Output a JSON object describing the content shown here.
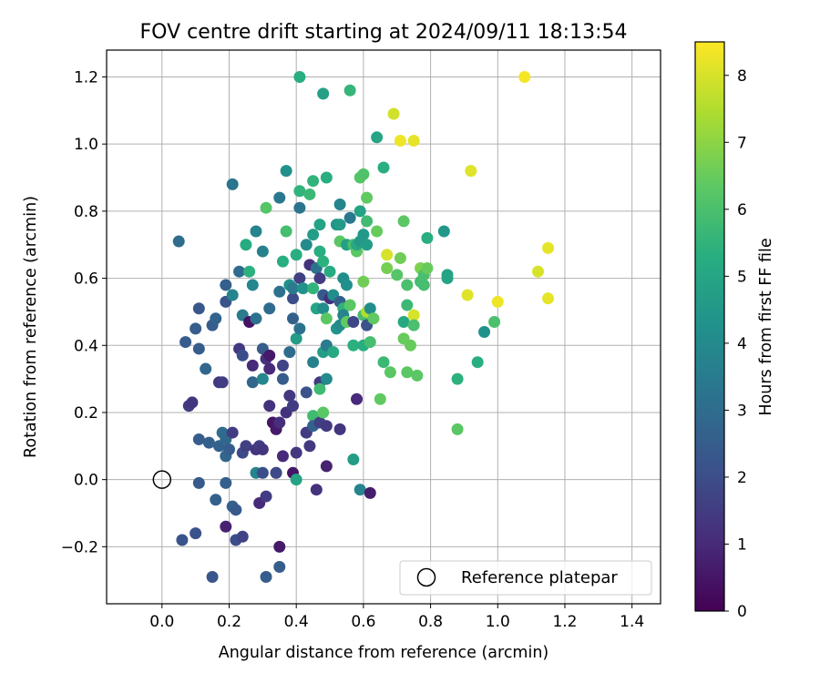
{
  "chart_data": {
    "type": "scatter",
    "title": "FOV centre drift starting at 2024/09/11 18:13:54",
    "xlabel": "Angular distance from reference (arcmin)",
    "ylabel": "Rotation from reference (arcmin)",
    "xlim": [
      -0.165,
      1.485
    ],
    "ylim": [
      -0.37,
      1.28
    ],
    "xticks": [
      0.0,
      0.2,
      0.4,
      0.6,
      0.8,
      1.0,
      1.2,
      1.4
    ],
    "xtick_labels": [
      "0.0",
      "0.2",
      "0.4",
      "0.6",
      "0.8",
      "1.0",
      "1.2",
      "1.4"
    ],
    "yticks": [
      -0.2,
      0.0,
      0.2,
      0.4,
      0.6,
      0.8,
      1.0,
      1.2
    ],
    "ytick_labels": [
      "−0.2",
      "0.0",
      "0.2",
      "0.4",
      "0.6",
      "0.8",
      "1.0",
      "1.2"
    ],
    "grid": true,
    "colormap": "viridis",
    "colorbar": {
      "label": "Hours from first FF file",
      "min": 0,
      "max": 8.5,
      "ticks": [
        0,
        1,
        2,
        3,
        4,
        5,
        6,
        7,
        8
      ],
      "tick_labels": [
        "0",
        "1",
        "2",
        "3",
        "4",
        "5",
        "6",
        "7",
        "8"
      ]
    },
    "reference_point": {
      "x": 0.0,
      "y": 0.0,
      "label": "Reference platepar"
    },
    "legend_position": "lower-right",
    "points": [
      {
        "x": 0.05,
        "y": 0.71,
        "h": 3.0
      },
      {
        "x": 0.06,
        "y": -0.18,
        "h": 2.2
      },
      {
        "x": 0.07,
        "y": 0.41,
        "h": 2.5
      },
      {
        "x": 0.08,
        "y": 0.22,
        "h": 1.5
      },
      {
        "x": 0.09,
        "y": 0.23,
        "h": 1.3
      },
      {
        "x": 0.1,
        "y": 0.45,
        "h": 2.5
      },
      {
        "x": 0.1,
        "y": -0.16,
        "h": 2.2
      },
      {
        "x": 0.11,
        "y": 0.51,
        "h": 2.3
      },
      {
        "x": 0.11,
        "y": 0.39,
        "h": 2.5
      },
      {
        "x": 0.11,
        "y": -0.01,
        "h": 2.4
      },
      {
        "x": 0.11,
        "y": 0.12,
        "h": 2.5
      },
      {
        "x": 0.13,
        "y": 0.33,
        "h": 2.8
      },
      {
        "x": 0.14,
        "y": 0.11,
        "h": 2.6
      },
      {
        "x": 0.15,
        "y": -0.29,
        "h": 2.3
      },
      {
        "x": 0.15,
        "y": 0.46,
        "h": 2.5
      },
      {
        "x": 0.16,
        "y": 0.48,
        "h": 2.7
      },
      {
        "x": 0.16,
        "y": -0.06,
        "h": 2.6
      },
      {
        "x": 0.17,
        "y": 0.29,
        "h": 1.4
      },
      {
        "x": 0.17,
        "y": 0.1,
        "h": 2.7
      },
      {
        "x": 0.18,
        "y": 0.14,
        "h": 3.0
      },
      {
        "x": 0.18,
        "y": 0.29,
        "h": 1.5
      },
      {
        "x": 0.19,
        "y": 0.07,
        "h": 2.8
      },
      {
        "x": 0.19,
        "y": 0.58,
        "h": 2.6
      },
      {
        "x": 0.19,
        "y": 0.53,
        "h": 2.2
      },
      {
        "x": 0.19,
        "y": 0.12,
        "h": 2.9
      },
      {
        "x": 0.19,
        "y": -0.01,
        "h": 2.6
      },
      {
        "x": 0.19,
        "y": -0.14,
        "h": 0.8
      },
      {
        "x": 0.2,
        "y": 0.09,
        "h": 2.5
      },
      {
        "x": 0.21,
        "y": 0.88,
        "h": 3.3
      },
      {
        "x": 0.21,
        "y": 0.55,
        "h": 3.8
      },
      {
        "x": 0.21,
        "y": 0.14,
        "h": 1.5
      },
      {
        "x": 0.21,
        "y": -0.08,
        "h": 2.6
      },
      {
        "x": 0.22,
        "y": -0.09,
        "h": 2.4
      },
      {
        "x": 0.22,
        "y": -0.18,
        "h": 2.0
      },
      {
        "x": 0.23,
        "y": 0.39,
        "h": 1.4
      },
      {
        "x": 0.23,
        "y": 0.62,
        "h": 3.0
      },
      {
        "x": 0.24,
        "y": 0.49,
        "h": 3.5
      },
      {
        "x": 0.24,
        "y": 0.37,
        "h": 2.0
      },
      {
        "x": 0.24,
        "y": 0.08,
        "h": 1.9
      },
      {
        "x": 0.24,
        "y": -0.17,
        "h": 1.7
      },
      {
        "x": 0.25,
        "y": 0.7,
        "h": 5.2
      },
      {
        "x": 0.25,
        "y": 0.1,
        "h": 1.6
      },
      {
        "x": 0.26,
        "y": 0.47,
        "h": 0.4
      },
      {
        "x": 0.26,
        "y": 0.62,
        "h": 5.4
      },
      {
        "x": 0.27,
        "y": 0.58,
        "h": 3.9
      },
      {
        "x": 0.27,
        "y": 0.34,
        "h": 1.0
      },
      {
        "x": 0.27,
        "y": 0.29,
        "h": 2.8
      },
      {
        "x": 0.28,
        "y": 0.74,
        "h": 3.8
      },
      {
        "x": 0.28,
        "y": 0.48,
        "h": 3.2
      },
      {
        "x": 0.28,
        "y": 0.09,
        "h": 1.3
      },
      {
        "x": 0.28,
        "y": 0.02,
        "h": 3.8
      },
      {
        "x": 0.29,
        "y": -0.07,
        "h": 1.0
      },
      {
        "x": 0.29,
        "y": 0.1,
        "h": 1.5
      },
      {
        "x": 0.3,
        "y": 0.39,
        "h": 2.5
      },
      {
        "x": 0.3,
        "y": 0.68,
        "h": 3.7
      },
      {
        "x": 0.3,
        "y": 0.3,
        "h": 3.9
      },
      {
        "x": 0.3,
        "y": 0.09,
        "h": 1.3
      },
      {
        "x": 0.3,
        "y": 0.02,
        "h": 2.0
      },
      {
        "x": 0.31,
        "y": 0.81,
        "h": 6.2
      },
      {
        "x": 0.31,
        "y": 0.36,
        "h": 1.2
      },
      {
        "x": 0.31,
        "y": -0.05,
        "h": 1.5
      },
      {
        "x": 0.31,
        "y": -0.29,
        "h": 2.5
      },
      {
        "x": 0.32,
        "y": 0.37,
        "h": 0.6
      },
      {
        "x": 0.32,
        "y": 0.33,
        "h": 1.0
      },
      {
        "x": 0.32,
        "y": 0.22,
        "h": 1.2
      },
      {
        "x": 0.32,
        "y": 0.51,
        "h": 3.0
      },
      {
        "x": 0.33,
        "y": 0.17,
        "h": 0.5
      },
      {
        "x": 0.34,
        "y": 0.15,
        "h": 0.6
      },
      {
        "x": 0.34,
        "y": 0.02,
        "h": 1.0
      },
      {
        "x": 0.34,
        "y": 0.02,
        "h": 1.9
      },
      {
        "x": 0.35,
        "y": 0.56,
        "h": 3.2
      },
      {
        "x": 0.35,
        "y": 0.84,
        "h": 3.4
      },
      {
        "x": 0.35,
        "y": 0.17,
        "h": 1.1
      },
      {
        "x": 0.35,
        "y": -0.2,
        "h": 0.6
      },
      {
        "x": 0.35,
        "y": -0.26,
        "h": 2.5
      },
      {
        "x": 0.36,
        "y": 0.65,
        "h": 5.3
      },
      {
        "x": 0.36,
        "y": 0.3,
        "h": 2.5
      },
      {
        "x": 0.36,
        "y": 0.07,
        "h": 1.0
      },
      {
        "x": 0.36,
        "y": 0.34,
        "h": 1.7
      },
      {
        "x": 0.37,
        "y": 0.74,
        "h": 5.9
      },
      {
        "x": 0.37,
        "y": 0.92,
        "h": 4.2
      },
      {
        "x": 0.37,
        "y": 0.2,
        "h": 1.2
      },
      {
        "x": 0.38,
        "y": 0.58,
        "h": 4.2
      },
      {
        "x": 0.38,
        "y": 0.38,
        "h": 3.0
      },
      {
        "x": 0.38,
        "y": 0.25,
        "h": 1.4
      },
      {
        "x": 0.39,
        "y": 0.02,
        "h": 0.5
      },
      {
        "x": 0.39,
        "y": 0.54,
        "h": 2.0
      },
      {
        "x": 0.39,
        "y": 0.57,
        "h": 3.5
      },
      {
        "x": 0.39,
        "y": 0.48,
        "h": 2.6
      },
      {
        "x": 0.39,
        "y": 0.22,
        "h": 1.5
      },
      {
        "x": 0.4,
        "y": 0.67,
        "h": 5.3
      },
      {
        "x": 0.4,
        "y": 0.42,
        "h": 4.7
      },
      {
        "x": 0.4,
        "y": 0.08,
        "h": 1.4
      },
      {
        "x": 0.4,
        "y": 0.0,
        "h": 4.9
      },
      {
        "x": 0.41,
        "y": 1.2,
        "h": 5.3
      },
      {
        "x": 0.41,
        "y": 0.86,
        "h": 5.5
      },
      {
        "x": 0.41,
        "y": 0.81,
        "h": 3.3
      },
      {
        "x": 0.41,
        "y": 0.45,
        "h": 3.2
      },
      {
        "x": 0.41,
        "y": 0.6,
        "h": 1.6
      },
      {
        "x": 0.42,
        "y": 0.57,
        "h": 4.3
      },
      {
        "x": 0.43,
        "y": 0.7,
        "h": 4.0
      },
      {
        "x": 0.43,
        "y": 0.26,
        "h": 2.2
      },
      {
        "x": 0.43,
        "y": 0.14,
        "h": 2.9
      },
      {
        "x": 0.43,
        "y": 0.14,
        "h": 1.5
      },
      {
        "x": 0.44,
        "y": 0.85,
        "h": 5.7
      },
      {
        "x": 0.44,
        "y": 0.64,
        "h": 1.2
      },
      {
        "x": 0.44,
        "y": 0.1,
        "h": 1.4
      },
      {
        "x": 0.45,
        "y": 0.89,
        "h": 5.5
      },
      {
        "x": 0.45,
        "y": 0.73,
        "h": 4.7
      },
      {
        "x": 0.45,
        "y": 0.57,
        "h": 5.5
      },
      {
        "x": 0.45,
        "y": 0.35,
        "h": 3.7
      },
      {
        "x": 0.45,
        "y": 0.19,
        "h": 5.8
      },
      {
        "x": 0.45,
        "y": 0.16,
        "h": 2.6
      },
      {
        "x": 0.46,
        "y": 0.51,
        "h": 5.0
      },
      {
        "x": 0.46,
        "y": 0.63,
        "h": 3.2
      },
      {
        "x": 0.46,
        "y": -0.03,
        "h": 1.2
      },
      {
        "x": 0.47,
        "y": 0.76,
        "h": 4.9
      },
      {
        "x": 0.47,
        "y": 0.68,
        "h": 5.3
      },
      {
        "x": 0.47,
        "y": 0.29,
        "h": 1.4
      },
      {
        "x": 0.47,
        "y": 0.27,
        "h": 5.8
      },
      {
        "x": 0.47,
        "y": 0.6,
        "h": 1.5
      },
      {
        "x": 0.47,
        "y": 0.17,
        "h": 1.6
      },
      {
        "x": 0.48,
        "y": 1.15,
        "h": 4.8
      },
      {
        "x": 0.48,
        "y": 0.55,
        "h": 2.4
      },
      {
        "x": 0.48,
        "y": 0.51,
        "h": 4.1
      },
      {
        "x": 0.48,
        "y": 0.38,
        "h": 4.7
      },
      {
        "x": 0.48,
        "y": 0.2,
        "h": 6.3
      },
      {
        "x": 0.48,
        "y": 0.65,
        "h": 5.4
      },
      {
        "x": 0.49,
        "y": 0.9,
        "h": 5.3
      },
      {
        "x": 0.49,
        "y": 0.48,
        "h": 6.3
      },
      {
        "x": 0.49,
        "y": 0.4,
        "h": 3.5
      },
      {
        "x": 0.49,
        "y": 0.3,
        "h": 4.0
      },
      {
        "x": 0.49,
        "y": 0.16,
        "h": 1.4
      },
      {
        "x": 0.49,
        "y": 0.04,
        "h": 0.8
      },
      {
        "x": 0.5,
        "y": 0.54,
        "h": 1.1
      },
      {
        "x": 0.5,
        "y": 0.62,
        "h": 5.2
      },
      {
        "x": 0.51,
        "y": 0.38,
        "h": 5.1
      },
      {
        "x": 0.51,
        "y": 0.55,
        "h": 4.1
      },
      {
        "x": 0.52,
        "y": 0.76,
        "h": 4.4
      },
      {
        "x": 0.52,
        "y": 0.45,
        "h": 4.4
      },
      {
        "x": 0.53,
        "y": 0.82,
        "h": 3.8
      },
      {
        "x": 0.53,
        "y": 0.76,
        "h": 4.6
      },
      {
        "x": 0.53,
        "y": 0.71,
        "h": 6.3
      },
      {
        "x": 0.53,
        "y": 0.53,
        "h": 2.6
      },
      {
        "x": 0.53,
        "y": 0.46,
        "h": 4.0
      },
      {
        "x": 0.53,
        "y": 0.15,
        "h": 1.3
      },
      {
        "x": 0.54,
        "y": 0.6,
        "h": 4.1
      },
      {
        "x": 0.54,
        "y": 0.51,
        "h": 5.5
      },
      {
        "x": 0.54,
        "y": 0.49,
        "h": 3.8
      },
      {
        "x": 0.55,
        "y": 0.7,
        "h": 4.8
      },
      {
        "x": 0.55,
        "y": 0.58,
        "h": 4.2
      },
      {
        "x": 0.55,
        "y": 0.47,
        "h": 6.4
      },
      {
        "x": 0.56,
        "y": 1.16,
        "h": 5.6
      },
      {
        "x": 0.56,
        "y": 0.52,
        "h": 6.3
      },
      {
        "x": 0.56,
        "y": 0.78,
        "h": 3.4
      },
      {
        "x": 0.57,
        "y": 0.7,
        "h": 6.0
      },
      {
        "x": 0.57,
        "y": 0.47,
        "h": 1.8
      },
      {
        "x": 0.57,
        "y": 0.4,
        "h": 5.4
      },
      {
        "x": 0.57,
        "y": 0.06,
        "h": 4.7
      },
      {
        "x": 0.58,
        "y": 0.24,
        "h": 1.0
      },
      {
        "x": 0.58,
        "y": 0.68,
        "h": 6.3
      },
      {
        "x": 0.58,
        "y": 0.7,
        "h": 5.1
      },
      {
        "x": 0.59,
        "y": 0.9,
        "h": 6.2
      },
      {
        "x": 0.59,
        "y": 0.8,
        "h": 4.9
      },
      {
        "x": 0.59,
        "y": 0.71,
        "h": 4.5
      },
      {
        "x": 0.59,
        "y": -0.03,
        "h": 3.8
      },
      {
        "x": 0.6,
        "y": 0.91,
        "h": 6.1
      },
      {
        "x": 0.6,
        "y": 0.59,
        "h": 6.6
      },
      {
        "x": 0.6,
        "y": 0.49,
        "h": 5.9
      },
      {
        "x": 0.6,
        "y": 0.4,
        "h": 5.3
      },
      {
        "x": 0.6,
        "y": 0.73,
        "h": 4.5
      },
      {
        "x": 0.61,
        "y": 0.84,
        "h": 6.4
      },
      {
        "x": 0.61,
        "y": 0.77,
        "h": 5.8
      },
      {
        "x": 0.61,
        "y": 0.7,
        "h": 4.7
      },
      {
        "x": 0.61,
        "y": 0.5,
        "h": 7.5
      },
      {
        "x": 0.61,
        "y": 0.46,
        "h": 2.2
      },
      {
        "x": 0.62,
        "y": -0.04,
        "h": 0.7
      },
      {
        "x": 0.62,
        "y": 0.51,
        "h": 4.1
      },
      {
        "x": 0.62,
        "y": 0.41,
        "h": 5.9
      },
      {
        "x": 0.63,
        "y": 0.48,
        "h": 6.4
      },
      {
        "x": 0.64,
        "y": 1.02,
        "h": 5.0
      },
      {
        "x": 0.64,
        "y": 0.74,
        "h": 6.5
      },
      {
        "x": 0.65,
        "y": 0.24,
        "h": 6.4
      },
      {
        "x": 0.66,
        "y": 0.93,
        "h": 5.3
      },
      {
        "x": 0.66,
        "y": 0.35,
        "h": 5.7
      },
      {
        "x": 0.67,
        "y": 0.67,
        "h": 8.0
      },
      {
        "x": 0.67,
        "y": 0.63,
        "h": 6.7
      },
      {
        "x": 0.68,
        "y": 0.32,
        "h": 6.3
      },
      {
        "x": 0.69,
        "y": 1.09,
        "h": 7.9
      },
      {
        "x": 0.7,
        "y": 0.61,
        "h": 6.2
      },
      {
        "x": 0.71,
        "y": 0.66,
        "h": 6.6
      },
      {
        "x": 0.71,
        "y": 1.01,
        "h": 8.3
      },
      {
        "x": 0.72,
        "y": 0.77,
        "h": 6.3
      },
      {
        "x": 0.72,
        "y": 0.47,
        "h": 5.1
      },
      {
        "x": 0.72,
        "y": 0.42,
        "h": 6.5
      },
      {
        "x": 0.73,
        "y": 0.32,
        "h": 6.3
      },
      {
        "x": 0.73,
        "y": 0.58,
        "h": 6.0
      },
      {
        "x": 0.73,
        "y": 0.52,
        "h": 5.7
      },
      {
        "x": 0.74,
        "y": 0.4,
        "h": 6.5
      },
      {
        "x": 0.75,
        "y": 0.49,
        "h": 8.0
      },
      {
        "x": 0.75,
        "y": 0.46,
        "h": 6.0
      },
      {
        "x": 0.75,
        "y": 1.01,
        "h": 8.2
      },
      {
        "x": 0.76,
        "y": 0.31,
        "h": 6.3
      },
      {
        "x": 0.77,
        "y": 0.63,
        "h": 6.8
      },
      {
        "x": 0.77,
        "y": 0.59,
        "h": 5.9
      },
      {
        "x": 0.78,
        "y": 0.61,
        "h": 6.0
      },
      {
        "x": 0.78,
        "y": 0.58,
        "h": 5.9
      },
      {
        "x": 0.79,
        "y": 0.72,
        "h": 5.3
      },
      {
        "x": 0.79,
        "y": 0.63,
        "h": 6.5
      },
      {
        "x": 0.84,
        "y": 0.74,
        "h": 4.5
      },
      {
        "x": 0.85,
        "y": 0.6,
        "h": 4.9
      },
      {
        "x": 0.85,
        "y": 0.61,
        "h": 4.9
      },
      {
        "x": 0.88,
        "y": 0.3,
        "h": 5.4
      },
      {
        "x": 0.88,
        "y": 0.15,
        "h": 6.3
      },
      {
        "x": 0.91,
        "y": 0.55,
        "h": 8.1
      },
      {
        "x": 0.92,
        "y": 0.92,
        "h": 8.1
      },
      {
        "x": 0.94,
        "y": 0.35,
        "h": 5.3
      },
      {
        "x": 0.96,
        "y": 0.44,
        "h": 4.3
      },
      {
        "x": 0.99,
        "y": 0.47,
        "h": 6.0
      },
      {
        "x": 1.0,
        "y": 0.53,
        "h": 8.3
      },
      {
        "x": 1.08,
        "y": 1.2,
        "h": 8.4
      },
      {
        "x": 1.12,
        "y": 0.62,
        "h": 8.0
      },
      {
        "x": 1.15,
        "y": 0.69,
        "h": 8.2
      },
      {
        "x": 1.15,
        "y": 0.54,
        "h": 8.2
      }
    ]
  }
}
